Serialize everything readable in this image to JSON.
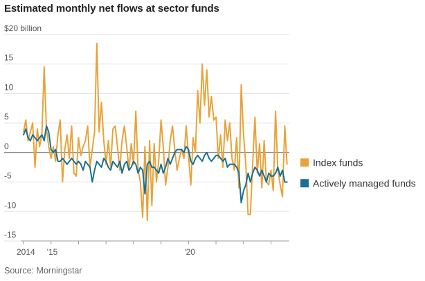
{
  "chart_data": {
    "type": "line",
    "title": "Estimated monthly net flows at sector funds",
    "source": "Source: Morningstar",
    "ylabel": "$20 billion",
    "ylim": [
      -15,
      20
    ],
    "yticks": [
      {
        "value": 20,
        "label": "$20 billion"
      },
      {
        "value": 15,
        "label": "15"
      },
      {
        "value": 10,
        "label": "10"
      },
      {
        "value": 5,
        "label": "5"
      },
      {
        "value": 0,
        "label": "0"
      },
      {
        "value": -5,
        "label": "-5"
      },
      {
        "value": -10,
        "label": "-10"
      },
      {
        "value": -15,
        "label": "-15"
      }
    ],
    "xrange": [
      0,
      116
    ],
    "xticks": [
      {
        "value": 0,
        "label": "2014"
      },
      {
        "value": 12,
        "label": "'15"
      },
      {
        "value": 24,
        "label": ""
      },
      {
        "value": 36,
        "label": ""
      },
      {
        "value": 48,
        "label": ""
      },
      {
        "value": 60,
        "label": ""
      },
      {
        "value": 72,
        "label": "'20"
      },
      {
        "value": 84,
        "label": ""
      },
      {
        "value": 96,
        "label": ""
      },
      {
        "value": 108,
        "label": ""
      }
    ],
    "series": [
      {
        "name": "Index funds",
        "color": "#e8a33a",
        "values": [
          3.5,
          5.5,
          2.0,
          3.5,
          5.0,
          -2.5,
          4.0,
          1.0,
          3.0,
          14.5,
          4.0,
          1.0,
          -1.0,
          1.0,
          -1.5,
          3.0,
          5.5,
          -5.0,
          0.5,
          3.0,
          -1.0,
          4.5,
          -3.5,
          -4.0,
          2.5,
          -0.5,
          1.0,
          2.0,
          4.5,
          -2.5,
          0.5,
          3.5,
          18.5,
          3.5,
          8.5,
          2.0,
          -2.0,
          2.0,
          -2.5,
          4.0,
          4.5,
          1.0,
          -3.0,
          2.0,
          4.5,
          1.0,
          -3.0,
          1.5,
          -2.0,
          7.0,
          -3.0,
          -5.0,
          -11.0,
          1.0,
          -11.5,
          2.0,
          -9.0,
          1.5,
          -5.0,
          -1.5,
          5.5,
          1.0,
          -5.5,
          -2.5,
          2.0,
          4.5,
          0.5,
          -3.0,
          -1.0,
          0.5,
          -1.0,
          4.5,
          -0.5,
          -5.5,
          2.5,
          0.0,
          10.5,
          5.0,
          15.0,
          8.0,
          14.0,
          6.0,
          9.5,
          5.5,
          6.0,
          -1.0,
          3.0,
          -2.5,
          5.5,
          2.0,
          5.0,
          -1.0,
          -3.0,
          2.5,
          -6.0,
          11.5,
          3.0,
          -2.0,
          -10.5,
          -10.5,
          -2.0,
          6.0,
          -3.5,
          1.5,
          -6.0,
          2.0,
          -5.0,
          -5.5,
          -3.0,
          -6.5,
          7.0,
          -3.0,
          -5.5,
          -7.5,
          4.5,
          -2.0
        ]
      },
      {
        "name": "Actively managed funds",
        "color": "#1a6f96",
        "values": [
          3.0,
          4.0,
          2.5,
          2.0,
          3.0,
          2.5,
          2.0,
          2.5,
          3.0,
          2.0,
          4.5,
          3.5,
          0.5,
          0.0,
          0.5,
          -1.5,
          -1.5,
          -1.0,
          -1.5,
          -2.0,
          -1.5,
          -1.0,
          -1.5,
          -2.0,
          -1.5,
          -2.0,
          -3.0,
          -1.5,
          -2.0,
          -2.5,
          -5.0,
          -3.0,
          -1.5,
          -2.0,
          -2.5,
          -1.0,
          -1.5,
          -2.5,
          -3.0,
          -1.5,
          -2.0,
          -2.5,
          -1.5,
          -3.5,
          -2.0,
          -1.5,
          -3.0,
          -2.5,
          -1.5,
          -2.0,
          -3.5,
          -2.5,
          -3.0,
          -7.0,
          -2.0,
          -1.5,
          -2.5,
          -2.5,
          -3.0,
          -3.5,
          -2.0,
          -3.5,
          -2.5,
          -1.0,
          -2.0,
          -1.0,
          0.0,
          0.5,
          0.5,
          0.5,
          0.0,
          1.0,
          0.5,
          -1.5,
          -2.0,
          -1.0,
          -0.5,
          -1.0,
          -1.5,
          -0.5,
          0.0,
          -1.0,
          -1.5,
          -1.0,
          -0.5,
          -0.5,
          -1.0,
          -1.5,
          -1.0,
          -2.5,
          -2.0,
          -2.0,
          -2.0,
          -2.5,
          -3.5,
          -8.5,
          -6.5,
          -5.5,
          -3.5,
          -5.0,
          -3.5,
          -2.5,
          -3.0,
          -4.0,
          -3.0,
          -4.0,
          -5.0,
          -3.5,
          -4.0,
          -4.0,
          -3.5,
          -2.5,
          -4.0,
          -3.0,
          -5.0,
          -5.0
        ]
      }
    ]
  }
}
